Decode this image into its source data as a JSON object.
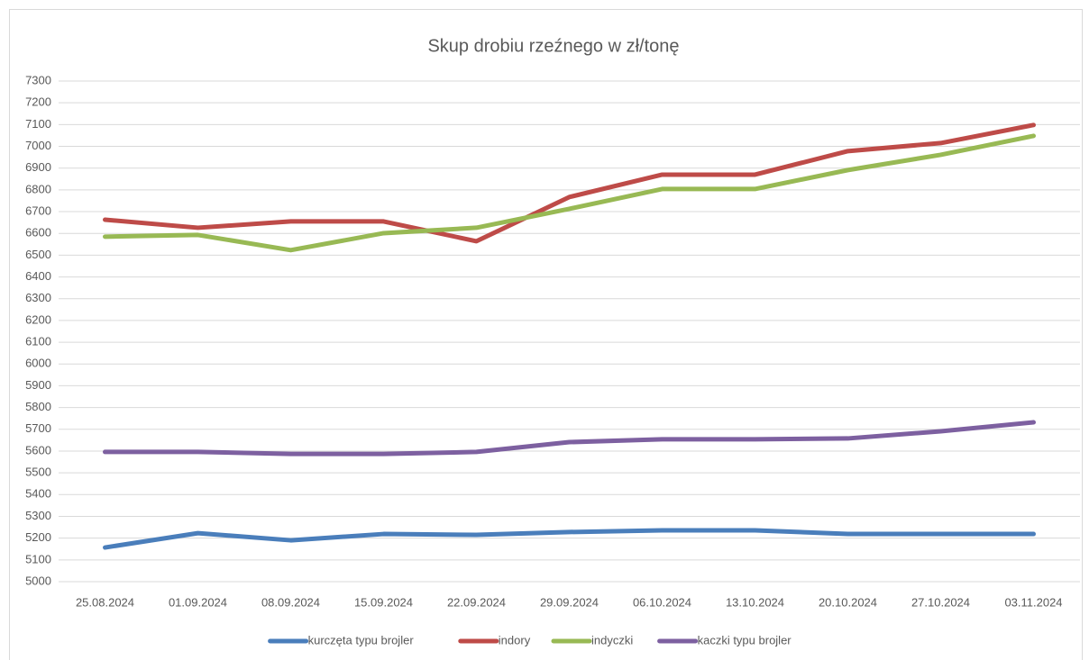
{
  "chart_data": {
    "type": "line",
    "title": "Skup drobiu rzeźnego w zł/tonę",
    "categories": [
      "25.08.2024",
      "01.09.2024",
      "08.09.2024",
      "15.09.2024",
      "22.09.2024",
      "29.09.2024",
      "06.10.2024",
      "13.10.2024",
      "20.10.2024",
      "27.10.2024",
      "03.11.2024"
    ],
    "series": [
      {
        "name": "kurczęta typu brojler",
        "color": "#4a7ebb",
        "values": [
          5157,
          5223,
          5190,
          5219,
          5215,
          5228,
          5236,
          5236,
          5219,
          5219,
          5219
        ]
      },
      {
        "name": "indory",
        "color": "#be4b48",
        "values": [
          6663,
          6626,
          6655,
          6655,
          6564,
          6767,
          6870,
          6870,
          6978,
          7015,
          7098
        ]
      },
      {
        "name": "indyczki",
        "color": "#98b954",
        "values": [
          6585,
          6593,
          6523,
          6601,
          6626,
          6713,
          6804,
          6804,
          6891,
          6961,
          7048
        ]
      },
      {
        "name": "kaczki typu brojler",
        "color": "#7d60a0",
        "values": [
          5596,
          5596,
          5587,
          5587,
          5596,
          5641,
          5654,
          5654,
          5658,
          5691,
          5732
        ]
      }
    ],
    "ylim": [
      5000,
      7300
    ],
    "yticks": [
      5000,
      5100,
      5200,
      5300,
      5400,
      5500,
      5600,
      5700,
      5800,
      5900,
      6000,
      6100,
      6200,
      6300,
      6400,
      6500,
      6600,
      6700,
      6800,
      6900,
      7000,
      7100,
      7200,
      7300
    ],
    "grid": true,
    "legend": "bottom"
  }
}
